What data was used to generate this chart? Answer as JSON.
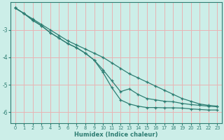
{
  "xlabel": "Humidex (Indice chaleur)",
  "background_color": "#cceee8",
  "grid_color": "#e8b4b4",
  "line_color": "#2e7d72",
  "x": [
    0,
    1,
    2,
    3,
    4,
    5,
    6,
    7,
    8,
    9,
    10,
    11,
    12,
    13,
    14,
    15,
    16,
    17,
    18,
    19,
    20,
    21,
    22,
    23
  ],
  "y_top": [
    -2.2,
    -2.4,
    -2.6,
    -2.8,
    -3.0,
    -3.2,
    -3.4,
    -3.55,
    -3.7,
    -3.85,
    -4.0,
    -4.2,
    -4.4,
    -4.6,
    -4.75,
    -4.9,
    -5.05,
    -5.2,
    -5.35,
    -5.5,
    -5.6,
    -5.7,
    -5.75,
    -5.78
  ],
  "y_mid": [
    -2.2,
    -2.4,
    -2.65,
    -2.85,
    -3.1,
    -3.3,
    -3.5,
    -3.65,
    -3.85,
    -4.1,
    -4.45,
    -4.85,
    -5.25,
    -5.15,
    -5.35,
    -5.5,
    -5.55,
    -5.6,
    -5.62,
    -5.68,
    -5.72,
    -5.75,
    -5.78,
    -5.8
  ],
  "y_bot": [
    -2.2,
    -2.4,
    -2.65,
    -2.85,
    -3.1,
    -3.3,
    -3.5,
    -3.65,
    -3.85,
    -4.1,
    -4.55,
    -5.1,
    -5.55,
    -5.7,
    -5.78,
    -5.83,
    -5.83,
    -5.84,
    -5.84,
    -5.85,
    -5.88,
    -5.9,
    -5.92,
    -5.92
  ],
  "ylim": [
    -6.4,
    -2.0
  ],
  "xlim": [
    -0.5,
    23.5
  ],
  "yticks": [
    -6,
    -5,
    -4,
    -3
  ],
  "xticks": [
    0,
    1,
    2,
    3,
    4,
    5,
    6,
    7,
    8,
    9,
    10,
    11,
    12,
    13,
    14,
    15,
    16,
    17,
    18,
    19,
    20,
    21,
    22,
    23
  ]
}
